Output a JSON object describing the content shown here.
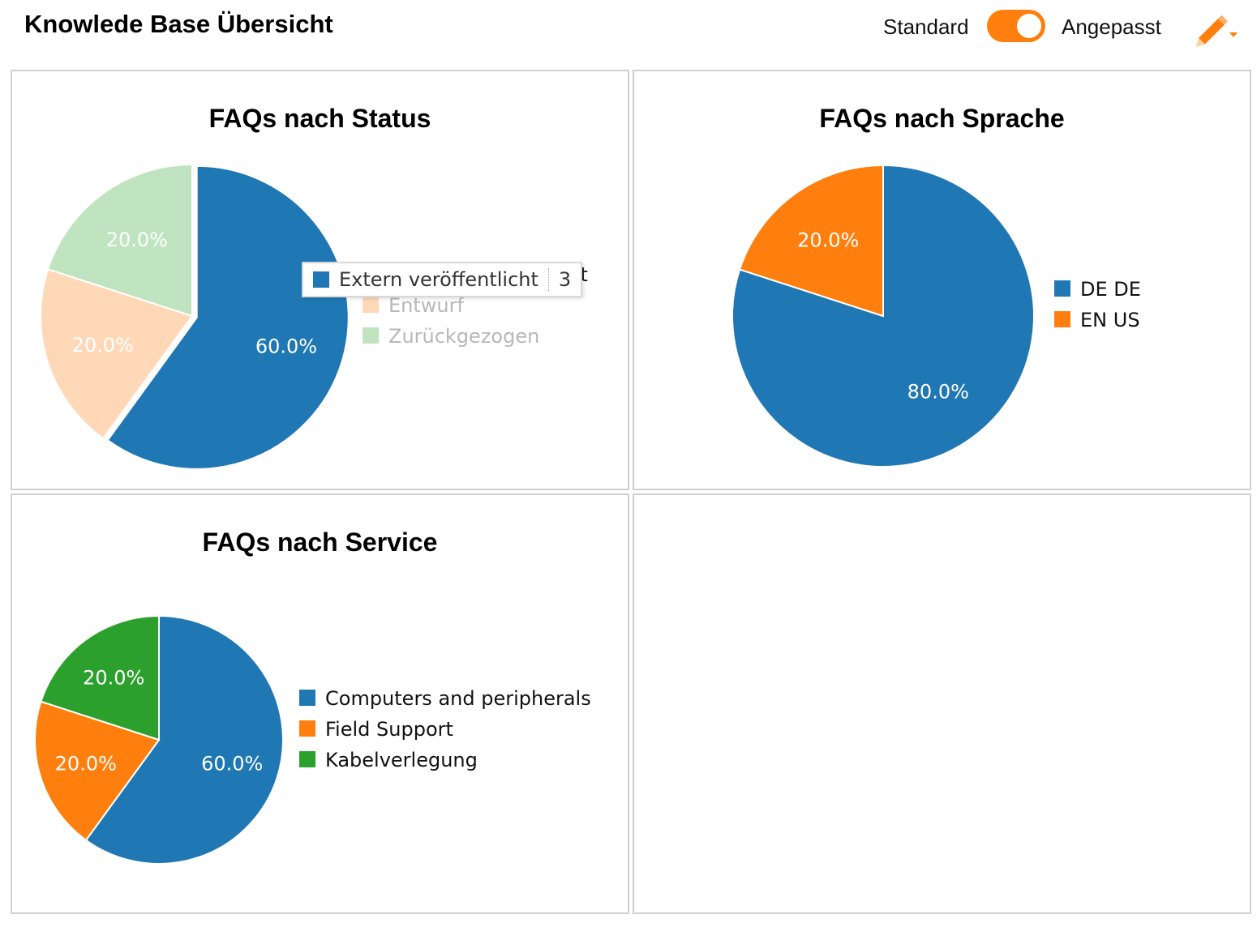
{
  "header": {
    "title": "Knowlede Base Übersicht",
    "toggle_left_label": "Standard",
    "toggle_right_label": "Angepasst",
    "toggle_state": "Angepasst",
    "accent_color": "#ff7f0e",
    "edit_icon": "pencil-icon"
  },
  "tooltip": {
    "label": "Extern veröffentlicht",
    "value": "3",
    "color": "#1f77b4"
  },
  "chart_data": [
    {
      "type": "pie",
      "title": "FAQs nach Status",
      "categories": [
        "Extern veröffentlicht",
        "Entwurf",
        "Zurückgezogen"
      ],
      "values": [
        60,
        20,
        20
      ],
      "labels": [
        "60.0%",
        "20.0%",
        "20.0%"
      ],
      "colors": [
        "#1f77b4",
        "#ffd8b8",
        "#c0e4c0"
      ],
      "legend_position": "right",
      "highlighted": "Extern veröffentlicht"
    },
    {
      "type": "pie",
      "title": "FAQs nach Sprache",
      "categories": [
        "DE DE",
        "EN US"
      ],
      "values": [
        80,
        20
      ],
      "labels": [
        "80.0%",
        "20.0%"
      ],
      "colors": [
        "#1f77b4",
        "#ff7f0e"
      ],
      "legend_position": "right"
    },
    {
      "type": "pie",
      "title": "FAQs nach Service",
      "categories": [
        "Computers and peripherals",
        "Field Support",
        "Kabelverlegung"
      ],
      "values": [
        60,
        20,
        20
      ],
      "labels": [
        "60.0%",
        "20.0%",
        "20.0%"
      ],
      "colors": [
        "#1f77b4",
        "#ff7f0e",
        "#2ca02c"
      ],
      "legend_position": "right"
    }
  ]
}
